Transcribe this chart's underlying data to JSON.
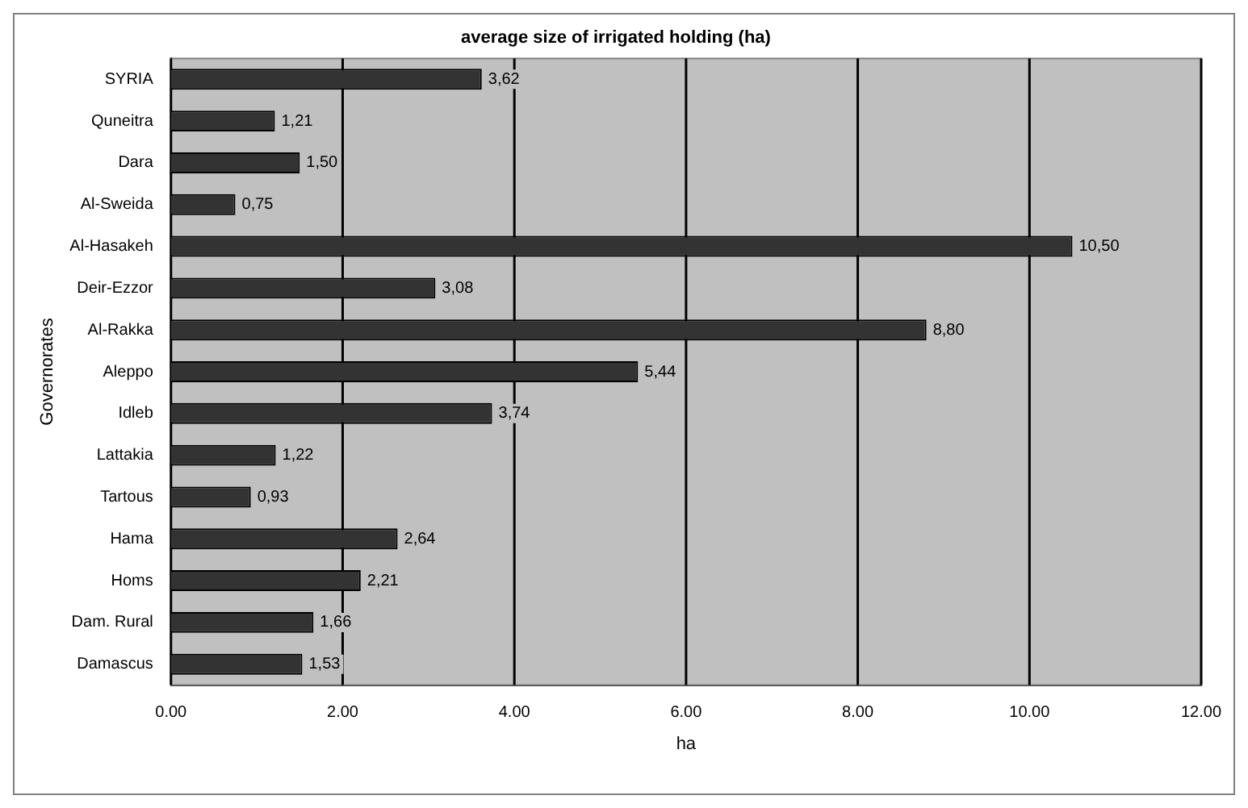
{
  "chart_data": {
    "type": "bar",
    "orientation": "horizontal",
    "title": "average size of irrigated holding (ha)",
    "xlabel": "ha",
    "ylabel": "Governorates",
    "categories": [
      "SYRIA",
      "Quneitra",
      "Dara",
      "Al-Sweida",
      "Al-Hasakeh",
      "Deir-Ezzor",
      "Al-Rakka",
      "Aleppo",
      "Idleb",
      "Lattakia",
      "Tartous",
      "Hama",
      "Homs",
      "Dam. Rural",
      "Damascus"
    ],
    "values": [
      3.62,
      1.21,
      1.5,
      0.75,
      10.5,
      3.08,
      8.8,
      5.44,
      3.74,
      1.22,
      0.93,
      2.64,
      2.21,
      1.66,
      1.53
    ],
    "value_labels": [
      "3,62",
      "1,21",
      "1,50",
      "0,75",
      "10,50",
      "3,08",
      "8,80",
      "5,44",
      "3,74",
      "1,22",
      "0,93",
      "2,64",
      "2,21",
      "1,66",
      "1,53"
    ],
    "color": "#333333",
    "xlim": [
      0,
      12
    ],
    "xticks": [
      {
        "value": 0,
        "label": "0.00"
      },
      {
        "value": 2,
        "label": "2.00"
      },
      {
        "value": 4,
        "label": "4.00"
      },
      {
        "value": 6,
        "label": "6.00"
      },
      {
        "value": 8,
        "label": "8.00"
      },
      {
        "value": 10,
        "label": "10.00"
      },
      {
        "value": 12,
        "label": "12.00"
      }
    ],
    "grid": "x",
    "legend": false
  }
}
